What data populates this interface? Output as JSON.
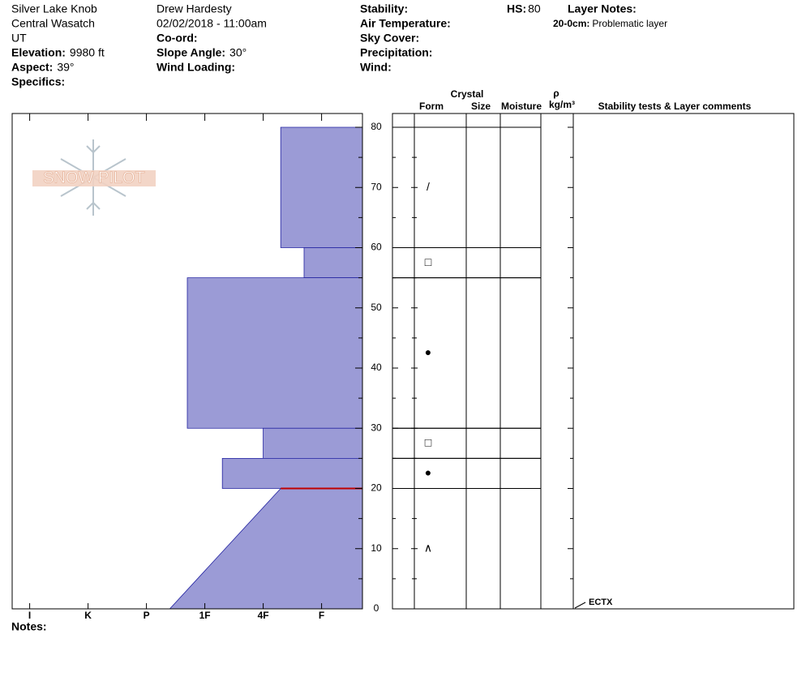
{
  "header": {
    "columns": [
      [
        {
          "text": "Silver Lake Knob"
        },
        {
          "text": "Central Wasatch"
        },
        {
          "text": "UT"
        },
        {
          "label": "Elevation:",
          "value": "9980 ft"
        },
        {
          "label": "Aspect:",
          "value": "39°"
        },
        {
          "label": "Specifics:"
        }
      ],
      [
        {
          "text": "Drew Hardesty"
        },
        {
          "text": "02/02/2018 - 11:00am"
        },
        {
          "label": "Co-ord:"
        },
        {
          "label": "Slope Angle:",
          "value": "30°"
        },
        {
          "label": "Wind Loading:"
        }
      ],
      [
        {
          "label": "Stability:"
        },
        {
          "label": "Air Temperature:"
        },
        {
          "label": "Sky Cover:"
        },
        {
          "label": "Precipitation:"
        },
        {
          "label": "Wind:"
        }
      ]
    ],
    "hs_label": "HS:",
    "hs_value": "80",
    "layer_notes_title": "Layer Notes:",
    "layer_notes": [
      {
        "range": "20-0cm:",
        "text": "Problematic layer"
      }
    ]
  },
  "logo": "SNOW PILOT",
  "notes_label": "Notes:",
  "chart_data": {
    "type": "snow-profile",
    "color": "#9b9bd6",
    "ylim": [
      0,
      80
    ],
    "yticks": [
      0,
      10,
      20,
      30,
      40,
      50,
      60,
      70,
      80
    ],
    "yminorticks": [
      5,
      15,
      25,
      35,
      45,
      55,
      65,
      75
    ],
    "xlim": [
      6.3,
      0.3
    ],
    "xticks": [
      {
        "value": 6,
        "label": "I"
      },
      {
        "value": 5,
        "label": "K"
      },
      {
        "value": 4,
        "label": "P"
      },
      {
        "value": 3,
        "label": "1F"
      },
      {
        "value": 2,
        "label": "4F"
      },
      {
        "value": 1,
        "label": "F"
      }
    ],
    "columns": {
      "crystal": "Crystal",
      "form": "Form",
      "size": "Size",
      "moisture": "Moisture",
      "rho": "ρ",
      "density": "kg/m³",
      "comments": "Stability tests & Layer comments"
    },
    "layers": [
      {
        "top": 80,
        "bottom": 60,
        "hardness_top": 1.7,
        "hardness_bottom": 1.7,
        "form": "/"
      },
      {
        "top": 60,
        "bottom": 55,
        "hardness_top": 1.3,
        "hardness_bottom": 1.3,
        "form": "□"
      },
      {
        "top": 55,
        "bottom": 30,
        "hardness_top": 3.3,
        "hardness_bottom": 3.3,
        "form": "●"
      },
      {
        "top": 30,
        "bottom": 25,
        "hardness_top": 2.0,
        "hardness_bottom": 2.0,
        "form": "□"
      },
      {
        "top": 25,
        "bottom": 20,
        "hardness_top": 2.7,
        "hardness_bottom": 2.7,
        "form": "●"
      },
      {
        "top": 20,
        "bottom": 0,
        "hardness_top": 1.7,
        "hardness_bottom": 3.6,
        "form": "∧",
        "problematic": true
      }
    ],
    "tests": [
      {
        "depth": 0,
        "label": "ECTX"
      }
    ]
  }
}
